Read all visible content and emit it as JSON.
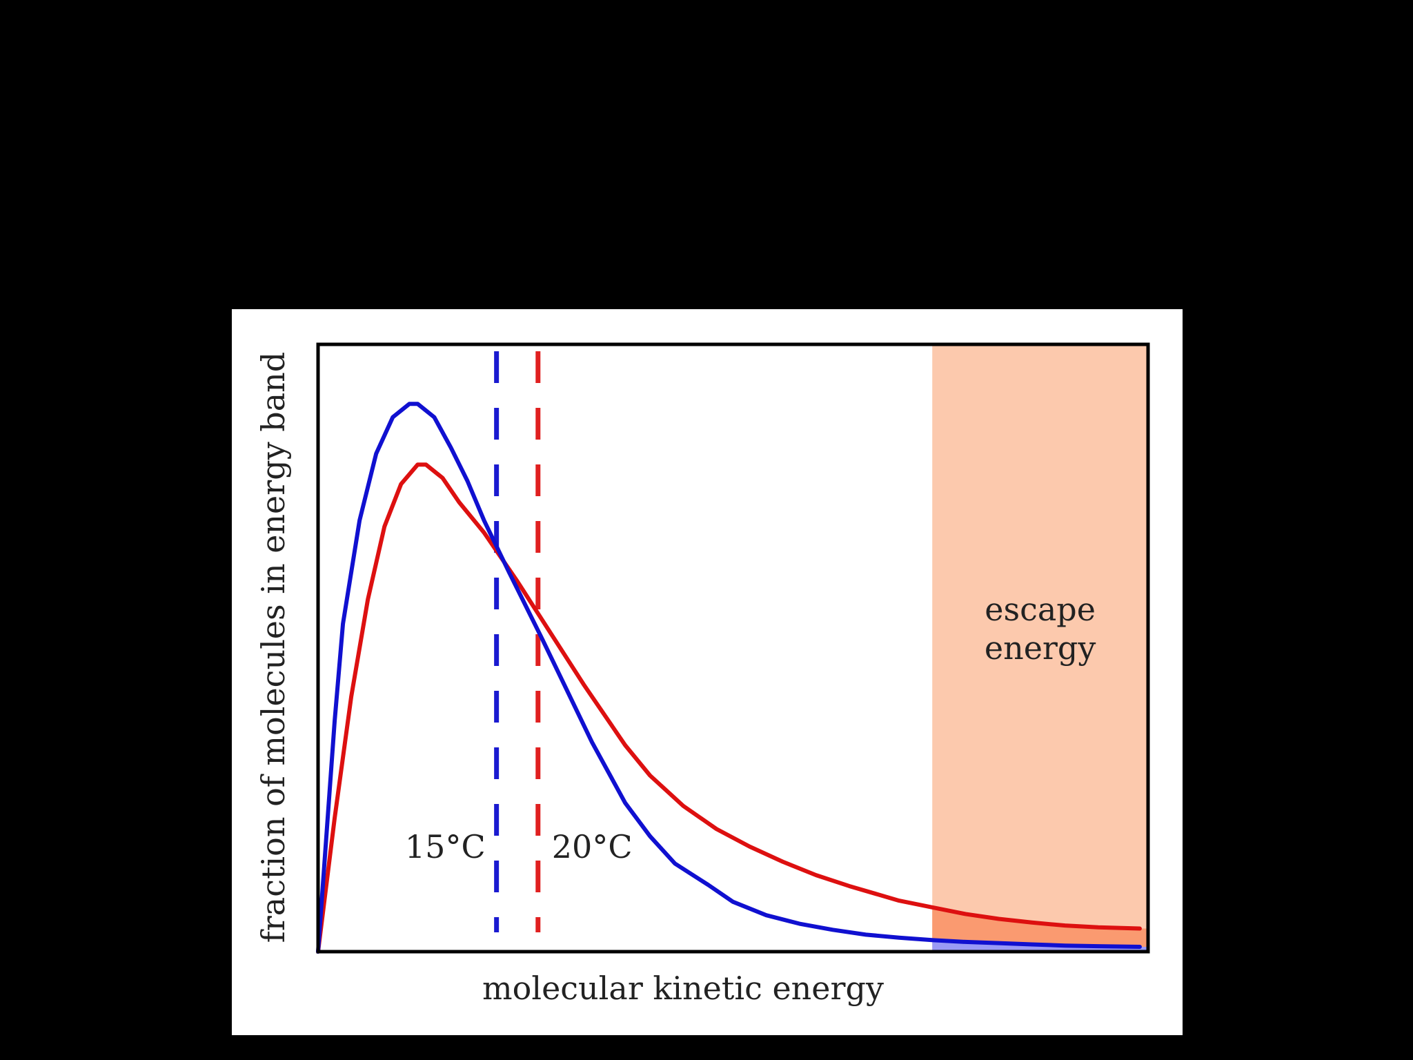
{
  "chart_data": {
    "type": "line",
    "xlabel": "molecular kinetic energy",
    "ylabel": "fraction of molecules in energy band",
    "xlim": [
      0,
      100
    ],
    "ylim": [
      0,
      100
    ],
    "series": [
      {
        "name": "15°C",
        "color": "#1010d0",
        "x": [
          0,
          2,
          3,
          5,
          7,
          9,
          11,
          12,
          14,
          16,
          18,
          20,
          23,
          27,
          30,
          33,
          37,
          40,
          43,
          47,
          50,
          54,
          58,
          62,
          66,
          70,
          74,
          78,
          82,
          86,
          90,
          94,
          99
        ],
        "y": [
          0,
          38,
          54,
          71,
          82,
          88,
          90.2,
          90.2,
          88,
          83,
          77.5,
          71,
          62.5,
          51.5,
          43,
          34.5,
          24.5,
          19,
          14.5,
          11,
          8.2,
          6,
          4.6,
          3.6,
          2.8,
          2.3,
          1.9,
          1.6,
          1.4,
          1.2,
          1.0,
          0.9,
          0.8
        ]
      },
      {
        "name": "20°C",
        "color": "#dd1010",
        "x": [
          0,
          2,
          4,
          6,
          8,
          10,
          12,
          13,
          15,
          17,
          20,
          24,
          28,
          32,
          37,
          40,
          44,
          48,
          52,
          56,
          60,
          64,
          70,
          74,
          78,
          82,
          86,
          90,
          94,
          99
        ],
        "y": [
          0,
          22,
          42,
          58,
          70,
          77,
          80.2,
          80.2,
          78,
          74,
          69,
          61,
          52.5,
          44,
          34,
          29,
          24,
          20.2,
          17.3,
          14.8,
          12.6,
          10.8,
          8.4,
          7.3,
          6.2,
          5.4,
          4.8,
          4.3,
          4.0,
          3.8
        ]
      }
    ],
    "reference_lines": [
      {
        "x": 21.5,
        "label": "15°C",
        "color": "#1a1ad0",
        "style": "dashed"
      },
      {
        "x": 26.5,
        "label": "20°C",
        "color": "#e02020",
        "style": "dashed"
      }
    ],
    "region": {
      "x_start": 74,
      "x_end": 100,
      "label_line1": "escape",
      "label_line2": "energy",
      "color": "#fcc9ad"
    },
    "tail_fill": {
      "upper_color": "#fa9a70",
      "lower_color": "#9a9af5"
    },
    "grid": false,
    "legend": "none"
  }
}
